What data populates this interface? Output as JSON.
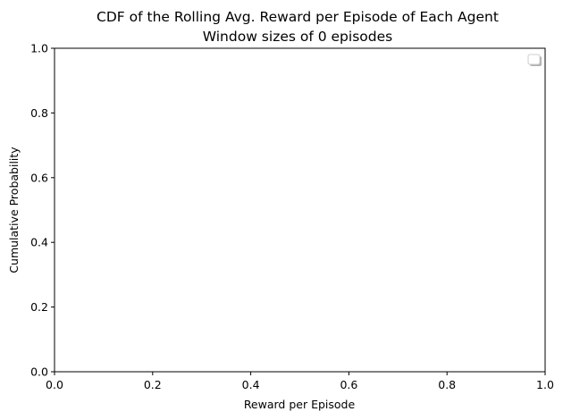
{
  "chart_data": {
    "type": "line",
    "title": "CDF of the Rolling Avg. Reward per Episode of Each Agent",
    "subtitle": "Window sizes of 0 episodes",
    "xlabel": "Reward per Episode",
    "ylabel": "Cumulative Probability",
    "xlim": [
      0.0,
      1.0
    ],
    "ylim": [
      0.0,
      1.0
    ],
    "xticks": [
      "0.0",
      "0.2",
      "0.4",
      "0.6",
      "0.8",
      "1.0"
    ],
    "yticks": [
      "0.0",
      "0.2",
      "0.4",
      "0.6",
      "0.8",
      "1.0"
    ],
    "grid": false,
    "legend_position": "upper-right",
    "legend_entries": [],
    "series": []
  }
}
